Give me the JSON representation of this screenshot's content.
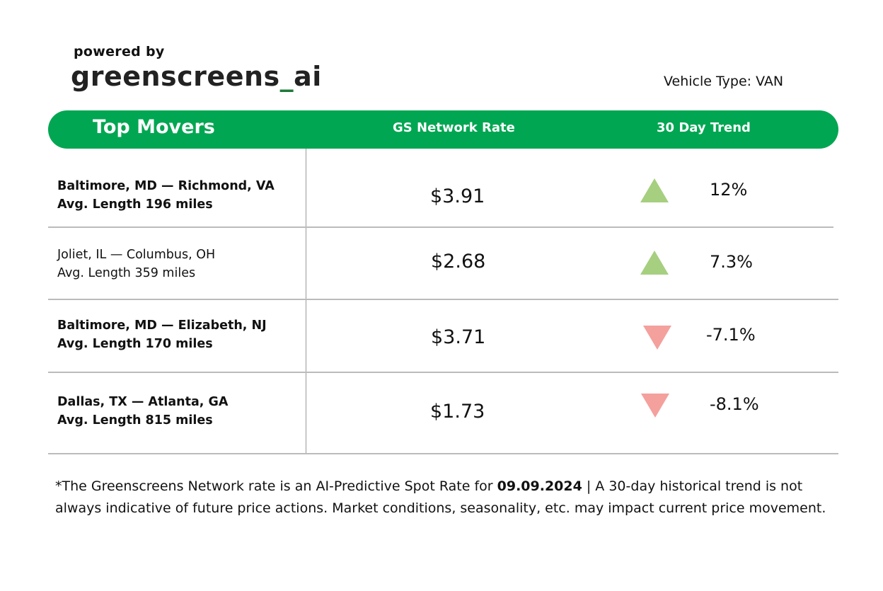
{
  "brand": {
    "powered_by": "powered by",
    "logo_left": "greenscreens",
    "logo_underscore": "_",
    "logo_right": "ai"
  },
  "vehicle_type": "Vehicle Type: VAN",
  "colors": {
    "header_green": "#00a651",
    "up": "#a6cf80",
    "down": "#f4a09c",
    "logo_underscore": "#1f7a3a"
  },
  "table": {
    "title": "Top Movers",
    "columns": [
      "GS Network Rate",
      "30 Day Trend"
    ],
    "rows": [
      {
        "lane": "Baltimore, MD — Richmond, VA",
        "length": "Avg. Length 196 miles",
        "rate": "$3.91",
        "trend": "12%",
        "direction": "up",
        "icon": "triangle-up-icon"
      },
      {
        "lane": "Joliet, IL — Columbus, OH",
        "length": "Avg. Length 359 miles",
        "rate": "$2.68",
        "trend": "7.3%",
        "direction": "up",
        "icon": "triangle-up-icon"
      },
      {
        "lane": "Baltimore, MD — Elizabeth, NJ",
        "length": "Avg. Length 170 miles",
        "rate": "$3.71",
        "trend": "-7.1%",
        "direction": "down",
        "icon": "triangle-down-icon"
      },
      {
        "lane": "Dallas, TX — Atlanta, GA",
        "length": "Avg. Length 815 miles",
        "rate": "$1.73",
        "trend": "-8.1%",
        "direction": "down",
        "icon": "triangle-down-icon"
      }
    ]
  },
  "footnote": {
    "before": "*The Greenscreens Network rate is an AI-Predictive Spot Rate for ",
    "date": "09.09.2024",
    "after": " | A 30-day historical trend is not always indicative of future price actions. Market conditions, seasonality, etc. may impact current price movement."
  }
}
